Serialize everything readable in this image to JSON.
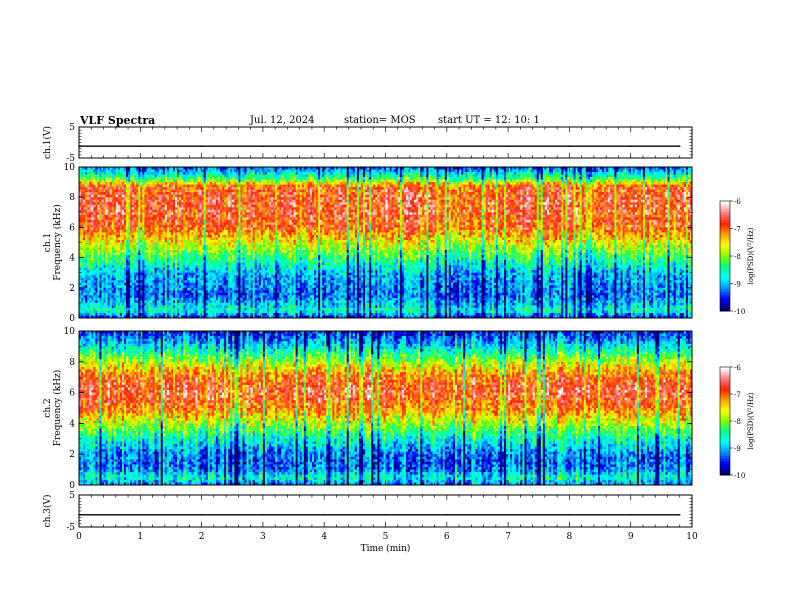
{
  "header": {
    "title": "VLF Spectra",
    "date": "Jul. 12, 2024",
    "station": "station= MOS",
    "start": "start UT =  12: 10: 1"
  },
  "colors": {
    "scale": [
      "#000070",
      "#0000ff",
      "#0096ff",
      "#00ffff",
      "#00ff80",
      "#80ff00",
      "#ffff00",
      "#ffa000",
      "#ff2000",
      "#ff8080",
      "#ffffff"
    ]
  },
  "chart_data": [
    {
      "type": "line",
      "panel": "ch1-voltage",
      "ylabel": "ch.1(V)",
      "ylim": [
        -5,
        5
      ],
      "yticks": [
        "5",
        "-5"
      ],
      "xlim": [
        0,
        10
      ],
      "x": [
        0,
        1,
        2,
        3,
        4,
        5,
        6,
        7,
        8,
        9,
        9.8
      ],
      "values": [
        -1.2,
        -1.2,
        -1.2,
        -1.2,
        -1.2,
        -1.2,
        -1.2,
        -1.2,
        -1.2,
        -1.2,
        -1.2
      ]
    },
    {
      "type": "heatmap",
      "panel": "ch1-spectrogram",
      "ylabel": "ch.1",
      "ylabel2": "Frequency (kHz)",
      "ylim": [
        0,
        10
      ],
      "yticks": [
        "0",
        "2",
        "4",
        "6",
        "8",
        "10"
      ],
      "xlim": [
        0,
        10
      ],
      "colorbar": {
        "label": "log(PSD)(V²/Hz)",
        "range": [
          -10,
          -6
        ],
        "ticks": [
          "-6",
          "-7",
          "-8",
          "-9",
          "-10"
        ]
      },
      "band_profile": [
        [
          0,
          -9.6
        ],
        [
          0.5,
          -8.6
        ],
        [
          1,
          -9.0
        ],
        [
          1.5,
          -9.3
        ],
        [
          2,
          -9.2
        ],
        [
          3,
          -9.0
        ],
        [
          4,
          -8.3
        ],
        [
          5,
          -7.6
        ],
        [
          6,
          -6.9
        ],
        [
          7,
          -6.7
        ],
        [
          8,
          -6.7
        ],
        [
          8.7,
          -6.9
        ],
        [
          9.2,
          -8.2
        ],
        [
          9.6,
          -8.8
        ],
        [
          10,
          -9.4
        ]
      ]
    },
    {
      "type": "heatmap",
      "panel": "ch2-spectrogram",
      "ylabel": "ch.2",
      "ylabel2": "Frequency (kHz)",
      "ylim": [
        0,
        10
      ],
      "yticks": [
        "0",
        "2",
        "4",
        "6",
        "8",
        "10"
      ],
      "xlim": [
        0,
        10
      ],
      "colorbar": {
        "label": "log(PSD)(V²/Hz)",
        "range": [
          -10,
          -6
        ],
        "ticks": [
          "-6",
          "-7",
          "-8",
          "-9",
          "-10"
        ]
      },
      "band_profile": [
        [
          0,
          -9.2
        ],
        [
          0.5,
          -8.6
        ],
        [
          1,
          -9.2
        ],
        [
          1.5,
          -9.3
        ],
        [
          2,
          -9.2
        ],
        [
          3,
          -8.6
        ],
        [
          4,
          -7.8
        ],
        [
          5,
          -7.0
        ],
        [
          6,
          -6.6
        ],
        [
          7,
          -6.9
        ],
        [
          8,
          -7.8
        ],
        [
          9,
          -8.8
        ],
        [
          10,
          -9.6
        ]
      ]
    },
    {
      "type": "line",
      "panel": "ch3-voltage",
      "ylabel": "ch.3(V)",
      "ylim": [
        -5,
        5
      ],
      "yticks": [
        "5",
        "-5"
      ],
      "xlim": [
        0,
        10
      ],
      "xlabel": "Time (min)",
      "xticks": [
        "0",
        "1",
        "2",
        "3",
        "4",
        "5",
        "6",
        "7",
        "8",
        "9",
        "10"
      ],
      "x": [
        0,
        1,
        2,
        3,
        4,
        5,
        6,
        7,
        8,
        9,
        9.8
      ],
      "values": [
        -1.2,
        -1.2,
        -1.2,
        -1.2,
        -1.2,
        -1.2,
        -1.2,
        -1.2,
        -1.2,
        -1.2,
        -1.2
      ]
    }
  ]
}
